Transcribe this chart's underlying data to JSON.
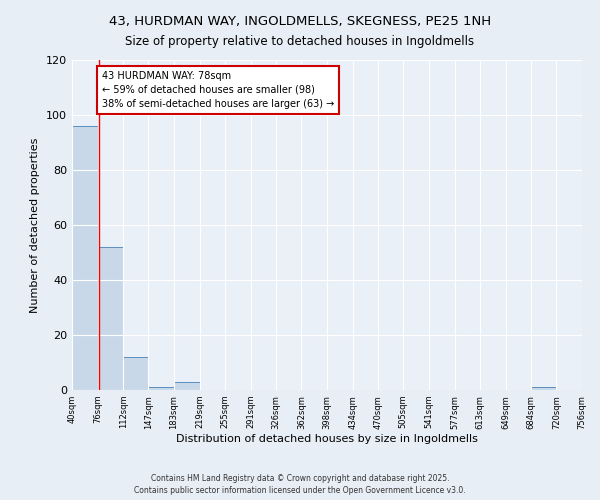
{
  "title1": "43, HURDMAN WAY, INGOLDMELLS, SKEGNESS, PE25 1NH",
  "title2": "Size of property relative to detached houses in Ingoldmells",
  "xlabel": "Distribution of detached houses by size in Ingoldmells",
  "ylabel": "Number of detached properties",
  "bins": [
    40,
    76,
    112,
    147,
    183,
    219,
    255,
    291,
    326,
    362,
    398,
    434,
    470,
    505,
    541,
    577,
    613,
    649,
    684,
    720,
    756
  ],
  "counts": [
    96,
    52,
    12,
    1,
    3,
    0,
    0,
    0,
    0,
    0,
    0,
    0,
    0,
    0,
    0,
    0,
    0,
    0,
    1,
    0
  ],
  "bar_color": "#c8d8e8",
  "bar_edge_color": "#5a8fc0",
  "red_line_x": 78,
  "annotation_line1": "43 HURDMAN WAY: 78sqm",
  "annotation_line2": "← 59% of detached houses are smaller (98)",
  "annotation_line3": "38% of semi-detached houses are larger (63) →",
  "annotation_box_color": "#ffffff",
  "annotation_box_edge": "#cc0000",
  "ylim": [
    0,
    120
  ],
  "yticks": [
    0,
    20,
    40,
    60,
    80,
    100,
    120
  ],
  "footer1": "Contains HM Land Registry data © Crown copyright and database right 2025.",
  "footer2": "Contains public sector information licensed under the Open Government Licence v3.0.",
  "background_color": "#e8eef5",
  "plot_bg_color": "#eaf0f7",
  "title1_fontsize": 9.5,
  "title2_fontsize": 8.5
}
